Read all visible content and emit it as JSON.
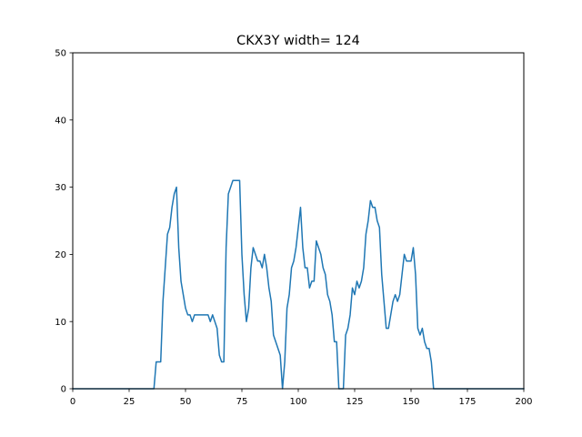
{
  "chart_data": {
    "type": "line",
    "title": "CKX3Y width= 124",
    "xlabel": "",
    "ylabel": "",
    "xlim": [
      0,
      200
    ],
    "ylim": [
      0,
      50
    ],
    "grid": false,
    "xticks": [
      0,
      25,
      50,
      75,
      100,
      125,
      150,
      175,
      200
    ],
    "yticks": [
      0,
      10,
      20,
      30,
      40,
      50
    ],
    "xtick_labels": [
      "0",
      "25",
      "50",
      "75",
      "100",
      "125",
      "150",
      "175",
      "200"
    ],
    "ytick_labels": [
      "0",
      "10",
      "20",
      "30",
      "40",
      "50"
    ],
    "series": [
      {
        "color": "#1f77b4",
        "x": [
          0,
          36,
          37,
          38,
          39,
          40,
          41,
          42,
          43,
          44,
          45,
          46,
          47,
          48,
          49,
          50,
          51,
          52,
          53,
          54,
          55,
          56,
          57,
          58,
          59,
          60,
          61,
          62,
          63,
          64,
          65,
          66,
          67,
          68,
          69,
          70,
          71,
          72,
          73,
          74,
          75,
          76,
          77,
          78,
          79,
          80,
          81,
          82,
          83,
          84,
          85,
          86,
          87,
          88,
          89,
          90,
          91,
          92,
          93,
          94,
          95,
          96,
          97,
          98,
          99,
          100,
          101,
          102,
          103,
          104,
          105,
          106,
          107,
          108,
          109,
          110,
          111,
          112,
          113,
          114,
          115,
          116,
          117,
          118,
          119,
          120,
          121,
          122,
          123,
          124,
          125,
          126,
          127,
          128,
          129,
          130,
          131,
          132,
          133,
          134,
          135,
          136,
          137,
          138,
          139,
          140,
          141,
          142,
          143,
          144,
          145,
          146,
          147,
          148,
          149,
          150,
          151,
          152,
          153,
          154,
          155,
          156,
          157,
          158,
          159,
          160,
          161,
          200
        ],
        "y": [
          0,
          0,
          4,
          4,
          4,
          13,
          18,
          23,
          24,
          27,
          29,
          30,
          21,
          16,
          14,
          12,
          11,
          11,
          10,
          11,
          11,
          11,
          11,
          11,
          11,
          11,
          10,
          11,
          10,
          9,
          5,
          4,
          4,
          21,
          29,
          30,
          31,
          31,
          31,
          31,
          20,
          14,
          10,
          12,
          18,
          21,
          20,
          19,
          19,
          18,
          20,
          18,
          15,
          13,
          8,
          7,
          6,
          5,
          0,
          4,
          12,
          14,
          18,
          19,
          21,
          24,
          27,
          21,
          18,
          18,
          15,
          16,
          16,
          22,
          21,
          20,
          18,
          17,
          14,
          13,
          11,
          7,
          7,
          0,
          0,
          0,
          8,
          9,
          11,
          15,
          14,
          16,
          15,
          16,
          18,
          23,
          25,
          28,
          27,
          27,
          25,
          24,
          17,
          13,
          9,
          9,
          11,
          13,
          14,
          13,
          14,
          17,
          20,
          19,
          19,
          19,
          21,
          17,
          9,
          8,
          9,
          7,
          6,
          6,
          4,
          0,
          0,
          0
        ]
      }
    ]
  }
}
